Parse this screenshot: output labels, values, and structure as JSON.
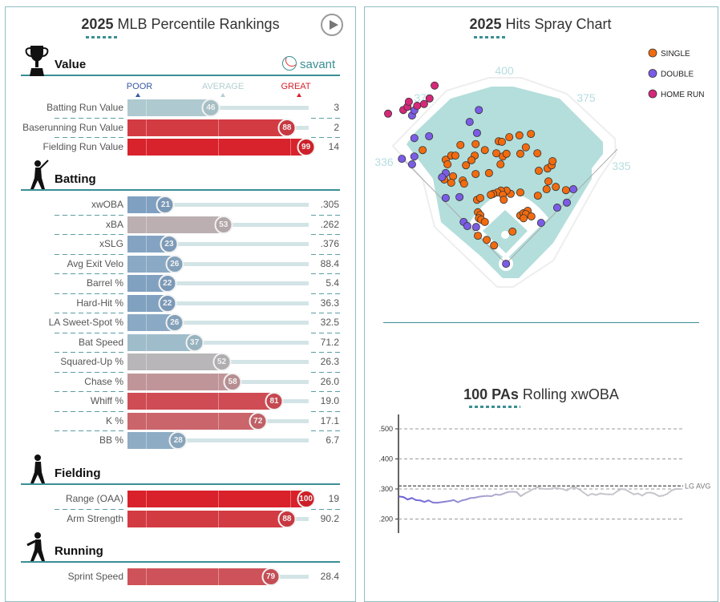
{
  "left_panel": {
    "title_bold": "2025",
    "title_rest": " MLB Percentile Rankings",
    "play_button": "play-icon",
    "savant_logo": "savant",
    "legend": {
      "poor": "POOR",
      "average": "AVERAGE",
      "great": "GREAT"
    },
    "colors": {
      "poor": "#325aa8",
      "average": "#b4cfd1",
      "great": "#d8212a"
    },
    "sections": [
      {
        "title": "Value",
        "icon": "trophy-icon",
        "rows": [
          {
            "label": "Batting Run Value",
            "pct": 46,
            "value": "3"
          },
          {
            "label": "Baserunning Run Value",
            "pct": 88,
            "value": "2"
          },
          {
            "label": "Fielding Run Value",
            "pct": 99,
            "value": "14"
          }
        ]
      },
      {
        "title": "Batting",
        "icon": "batter-icon",
        "rows": [
          {
            "label": "xwOBA",
            "pct": 21,
            "value": ".305"
          },
          {
            "label": "xBA",
            "pct": 53,
            "value": ".262"
          },
          {
            "label": "xSLG",
            "pct": 23,
            "value": ".376"
          },
          {
            "label": "Avg Exit Velo",
            "pct": 26,
            "value": "88.4"
          },
          {
            "label": "Barrel %",
            "pct": 22,
            "value": "5.4"
          },
          {
            "label": "Hard-Hit %",
            "pct": 22,
            "value": "36.3"
          },
          {
            "label": "LA Sweet-Spot %",
            "pct": 26,
            "value": "32.5"
          },
          {
            "label": "Bat Speed",
            "pct": 37,
            "value": "71.2"
          },
          {
            "label": "Squared-Up %",
            "pct": 52,
            "value": "26.3"
          },
          {
            "label": "Chase %",
            "pct": 58,
            "value": "26.0"
          },
          {
            "label": "Whiff %",
            "pct": 81,
            "value": "19.0"
          },
          {
            "label": "K %",
            "pct": 72,
            "value": "17.1"
          },
          {
            "label": "BB %",
            "pct": 28,
            "value": "6.7"
          }
        ]
      },
      {
        "title": "Fielding",
        "icon": "fielder-icon",
        "rows": [
          {
            "label": "Range (OAA)",
            "pct": 100,
            "value": "19"
          },
          {
            "label": "Arm Strength",
            "pct": 88,
            "value": "90.2"
          }
        ]
      },
      {
        "title": "Running",
        "icon": "runner-icon",
        "rows": [
          {
            "label": "Sprint Speed",
            "pct": 79,
            "value": "28.4"
          }
        ]
      }
    ]
  },
  "spray": {
    "title_bold": "2025",
    "title_rest": " Hits Spray Chart",
    "distances": {
      "lf": "336",
      "lcf": "375",
      "cf": "400",
      "rcf": "375",
      "rf": "335"
    },
    "legend": [
      {
        "type": "single",
        "label": "SINGLE",
        "color": "#f26b0f"
      },
      {
        "type": "double",
        "label": "DOUBLE",
        "color": "#7b5ce6"
      },
      {
        "type": "hr",
        "label": "HOME RUN",
        "color": "#d6287a"
      }
    ],
    "hits": {
      "hr": [
        [
          -254,
          324
        ],
        [
          -221,
          332
        ],
        [
          -212,
          339
        ],
        [
          -209,
          350
        ],
        [
          -191,
          341
        ],
        [
          -176,
          345
        ],
        [
          -164,
          357
        ],
        [
          -153,
          385
        ]
      ],
      "double": [
        [
          -202,
          320
        ],
        [
          -197,
          331
        ],
        [
          -57,
          332
        ],
        [
          -77,
          306
        ],
        [
          -61,
          282
        ],
        [
          -197,
          271
        ],
        [
          -165,
          275
        ],
        [
          -224,
          226
        ],
        [
          -202,
          214
        ],
        [
          -197,
          231
        ],
        [
          -129,
          195
        ],
        [
          -137,
          186
        ],
        [
          -129,
          141
        ],
        [
          -99,
          143
        ],
        [
          -90,
          89
        ],
        [
          -82,
          80
        ],
        [
          -63,
          78
        ],
        [
          2,
          -2
        ],
        [
          78,
          87
        ],
        [
          113,
          120
        ],
        [
          134,
          131
        ],
        [
          148,
          160
        ]
      ],
      "single": [
        [
          -179,
          245
        ],
        [
          -97,
          256
        ],
        [
          -64,
          258
        ],
        [
          -44,
          245
        ],
        [
          -14,
          264
        ],
        [
          -7,
          263
        ],
        [
          9,
          273
        ],
        [
          31,
          277
        ],
        [
          56,
          280
        ],
        [
          45,
          251
        ],
        [
          33,
          237
        ],
        [
          70,
          238
        ],
        [
          -19,
          238
        ],
        [
          -5,
          231
        ],
        [
          3,
          237
        ],
        [
          -10,
          214
        ],
        [
          -66,
          233
        ],
        [
          -73,
          223
        ],
        [
          -85,
          212
        ],
        [
          -129,
          224
        ],
        [
          -117,
          233
        ],
        [
          -108,
          233
        ],
        [
          -125,
          214
        ],
        [
          -113,
          188
        ],
        [
          -132,
          181
        ],
        [
          -117,
          174
        ],
        [
          -92,
          179
        ],
        [
          -89,
          172
        ],
        [
          -64,
          193
        ],
        [
          -35,
          195
        ],
        [
          73,
          200
        ],
        [
          92,
          205
        ],
        [
          101,
          212
        ],
        [
          103,
          221
        ],
        [
          94,
          177
        ],
        [
          90,
          160
        ],
        [
          110,
          165
        ],
        [
          132,
          158
        ],
        [
          71,
          146
        ],
        [
          33,
          153
        ],
        [
          12,
          150
        ],
        [
          3,
          157
        ],
        [
          -9,
          157
        ],
        [
          -17,
          153
        ],
        [
          -26,
          150
        ],
        [
          -31,
          148
        ],
        [
          -5,
          148
        ],
        [
          -3,
          137
        ],
        [
          -61,
          137
        ],
        [
          -54,
          141
        ],
        [
          -59,
          110
        ],
        [
          -54,
          104
        ],
        [
          -57,
          97
        ],
        [
          -52,
          94
        ],
        [
          -44,
          89
        ],
        [
          33,
          103
        ],
        [
          40,
          108
        ],
        [
          49,
          113
        ],
        [
          45,
          106
        ],
        [
          57,
          101
        ],
        [
          40,
          97
        ],
        [
          16,
          68
        ],
        [
          -59,
          59
        ],
        [
          -40,
          50
        ],
        [
          -24,
          38
        ]
      ]
    }
  },
  "chart_data": {
    "type": "line",
    "title_bold": "100 PAs",
    "title_rest": " Rolling xwOBA",
    "yticks": [
      ".500",
      ".400",
      ".300",
      ".200"
    ],
    "ylim": [
      0.15,
      0.55
    ],
    "grid": true,
    "reference": {
      "label": "LG AVG",
      "value": 0.31
    },
    "series": [
      {
        "values": [
          0.275,
          0.273,
          0.265,
          0.27,
          0.263,
          0.262,
          0.257,
          0.262,
          0.255,
          0.254,
          0.256,
          0.258,
          0.26,
          0.263,
          0.256,
          0.262,
          0.265,
          0.27,
          0.271,
          0.274,
          0.276,
          0.277,
          0.276,
          0.282,
          0.28,
          0.285,
          0.29,
          0.291,
          0.29,
          0.276,
          0.285,
          0.292,
          0.3,
          0.306,
          0.301,
          0.3,
          0.3,
          0.304,
          0.302,
          0.3,
          0.295,
          0.304,
          0.306,
          0.298,
          0.288,
          0.278,
          0.284,
          0.28,
          0.285,
          0.283,
          0.282,
          0.282,
          0.292,
          0.3,
          0.298,
          0.29,
          0.282,
          0.285,
          0.278,
          0.287,
          0.288,
          0.284,
          0.276,
          0.278,
          0.284,
          0.295,
          0.3,
          0.3
        ]
      }
    ]
  }
}
